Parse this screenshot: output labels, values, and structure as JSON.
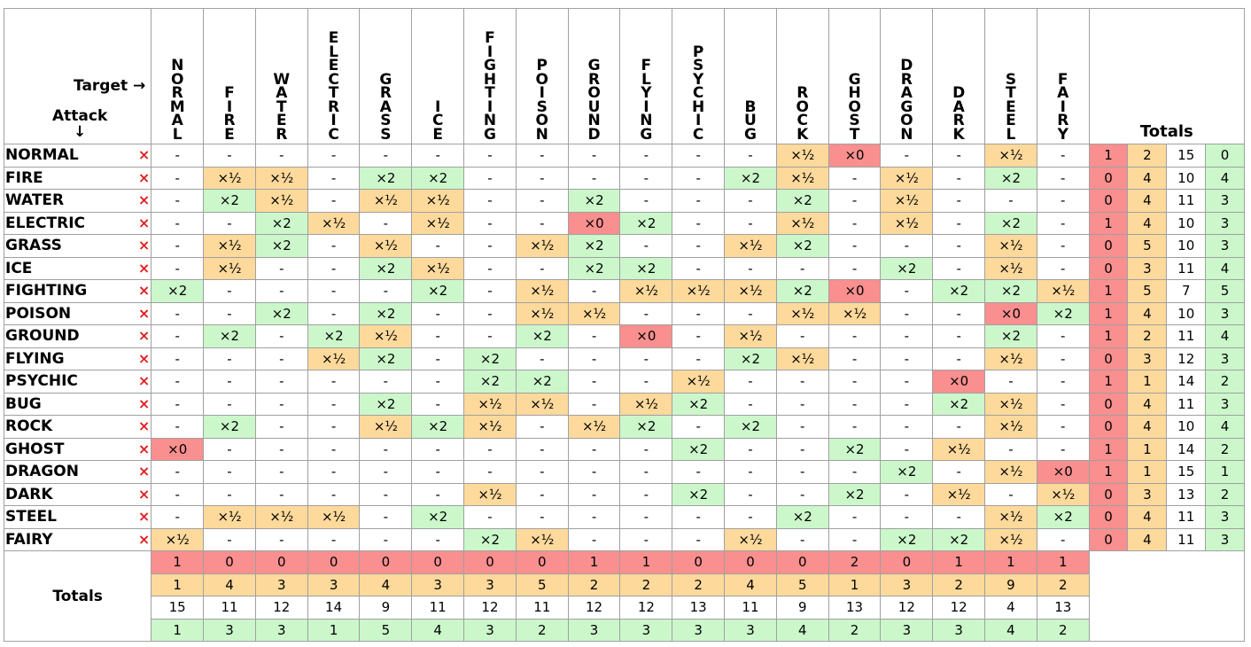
{
  "corner": {
    "target_label": "Target →",
    "attack_label": "Attack",
    "attack_arrow": "↓"
  },
  "remove_icon": "×",
  "types": [
    "NORMAL",
    "FIRE",
    "WATER",
    "ELECTRIC",
    "GRASS",
    "ICE",
    "FIGHTING",
    "POISON",
    "GROUND",
    "FLYING",
    "PSYCHIC",
    "BUG",
    "ROCK",
    "GHOST",
    "DRAGON",
    "DARK",
    "STEEL",
    "FAIRY"
  ],
  "totals_label": "Totals",
  "colors": {
    "zero": "#f98f8f",
    "half": "#fdd99b",
    "double": "#cbf7cb",
    "neutral": "#ffffff"
  },
  "grid": [
    [
      "-",
      "-",
      "-",
      "-",
      "-",
      "-",
      "-",
      "-",
      "-",
      "-",
      "-",
      "-",
      "×½",
      "×0",
      "-",
      "-",
      "×½",
      "-"
    ],
    [
      "-",
      "×½",
      "×½",
      "-",
      "×2",
      "×2",
      "-",
      "-",
      "-",
      "-",
      "-",
      "×2",
      "×½",
      "-",
      "×½",
      "-",
      "×2",
      "-"
    ],
    [
      "-",
      "×2",
      "×½",
      "-",
      "×½",
      "×½",
      "-",
      "-",
      "×2",
      "-",
      "-",
      "-",
      "×2",
      "-",
      "×½",
      "-",
      "-",
      "-"
    ],
    [
      "-",
      "-",
      "×2",
      "×½",
      "-",
      "×½",
      "-",
      "-",
      "×0",
      "×2",
      "-",
      "-",
      "×½",
      "-",
      "×½",
      "-",
      "×2",
      "-"
    ],
    [
      "-",
      "×½",
      "×2",
      "-",
      "×½",
      "-",
      "-",
      "×½",
      "×2",
      "-",
      "-",
      "×½",
      "×2",
      "-",
      "-",
      "-",
      "×½",
      "-"
    ],
    [
      "-",
      "×½",
      "-",
      "-",
      "×2",
      "×½",
      "-",
      "-",
      "×2",
      "×2",
      "-",
      "-",
      "-",
      "-",
      "×2",
      "-",
      "×½",
      "-"
    ],
    [
      "×2",
      "-",
      "-",
      "-",
      "-",
      "×2",
      "-",
      "×½",
      "-",
      "×½",
      "×½",
      "×½",
      "×2",
      "×0",
      "-",
      "×2",
      "×2",
      "×½"
    ],
    [
      "-",
      "-",
      "×2",
      "-",
      "×2",
      "-",
      "-",
      "×½",
      "×½",
      "-",
      "-",
      "-",
      "×½",
      "×½",
      "-",
      "-",
      "×0",
      "×2"
    ],
    [
      "-",
      "×2",
      "-",
      "×2",
      "×½",
      "-",
      "-",
      "×2",
      "-",
      "×0",
      "-",
      "×½",
      "-",
      "-",
      "-",
      "-",
      "×2",
      "-"
    ],
    [
      "-",
      "-",
      "-",
      "×½",
      "×2",
      "-",
      "×2",
      "-",
      "-",
      "-",
      "-",
      "×2",
      "×½",
      "-",
      "-",
      "-",
      "×½",
      "-"
    ],
    [
      "-",
      "-",
      "-",
      "-",
      "-",
      "-",
      "×2",
      "×2",
      "-",
      "-",
      "×½",
      "-",
      "-",
      "-",
      "-",
      "×0",
      "-",
      "-"
    ],
    [
      "-",
      "-",
      "-",
      "-",
      "×2",
      "-",
      "×½",
      "×½",
      "-",
      "×½",
      "×2",
      "-",
      "-",
      "-",
      "-",
      "×2",
      "×½",
      "-"
    ],
    [
      "-",
      "×2",
      "-",
      "-",
      "×½",
      "×2",
      "×½",
      "-",
      "×½",
      "×2",
      "-",
      "×2",
      "-",
      "-",
      "-",
      "-",
      "×½",
      "-"
    ],
    [
      "×0",
      "-",
      "-",
      "-",
      "-",
      "-",
      "-",
      "-",
      "-",
      "-",
      "×2",
      "-",
      "-",
      "×2",
      "-",
      "×½",
      "-",
      "-"
    ],
    [
      "-",
      "-",
      "-",
      "-",
      "-",
      "-",
      "-",
      "-",
      "-",
      "-",
      "-",
      "-",
      "-",
      "-",
      "×2",
      "-",
      "×½",
      "×0"
    ],
    [
      "-",
      "-",
      "-",
      "-",
      "-",
      "-",
      "×½",
      "-",
      "-",
      "-",
      "×2",
      "-",
      "-",
      "×2",
      "-",
      "×½",
      "-",
      "×½"
    ],
    [
      "-",
      "×½",
      "×½",
      "×½",
      "-",
      "×2",
      "-",
      "-",
      "-",
      "-",
      "-",
      "-",
      "×2",
      "-",
      "-",
      "-",
      "×½",
      "×2"
    ],
    [
      "×½",
      "-",
      "-",
      "-",
      "-",
      "-",
      "×2",
      "×½",
      "-",
      "-",
      "-",
      "×½",
      "-",
      "-",
      "×2",
      "×2",
      "×½",
      "-"
    ]
  ],
  "row_totals": [
    [
      1,
      2,
      15,
      0
    ],
    [
      0,
      4,
      10,
      4
    ],
    [
      0,
      4,
      11,
      3
    ],
    [
      1,
      4,
      10,
      3
    ],
    [
      0,
      5,
      10,
      3
    ],
    [
      0,
      3,
      11,
      4
    ],
    [
      1,
      5,
      7,
      5
    ],
    [
      1,
      4,
      10,
      3
    ],
    [
      1,
      2,
      11,
      4
    ],
    [
      0,
      3,
      12,
      3
    ],
    [
      1,
      1,
      14,
      2
    ],
    [
      0,
      4,
      11,
      3
    ],
    [
      0,
      4,
      10,
      4
    ],
    [
      1,
      1,
      14,
      2
    ],
    [
      1,
      1,
      15,
      1
    ],
    [
      0,
      3,
      13,
      2
    ],
    [
      0,
      4,
      11,
      3
    ],
    [
      0,
      4,
      11,
      3
    ]
  ],
  "col_totals": {
    "zero": [
      1,
      0,
      0,
      0,
      0,
      0,
      0,
      0,
      1,
      1,
      0,
      0,
      0,
      2,
      0,
      1,
      1,
      1
    ],
    "half": [
      1,
      4,
      3,
      3,
      4,
      3,
      3,
      5,
      2,
      2,
      2,
      4,
      5,
      1,
      3,
      2,
      9,
      2
    ],
    "neutral": [
      15,
      11,
      12,
      14,
      9,
      11,
      12,
      11,
      12,
      12,
      13,
      11,
      9,
      13,
      12,
      12,
      4,
      13
    ],
    "double": [
      1,
      3,
      3,
      1,
      5,
      4,
      3,
      2,
      3,
      3,
      3,
      3,
      4,
      2,
      3,
      3,
      4,
      2
    ]
  }
}
